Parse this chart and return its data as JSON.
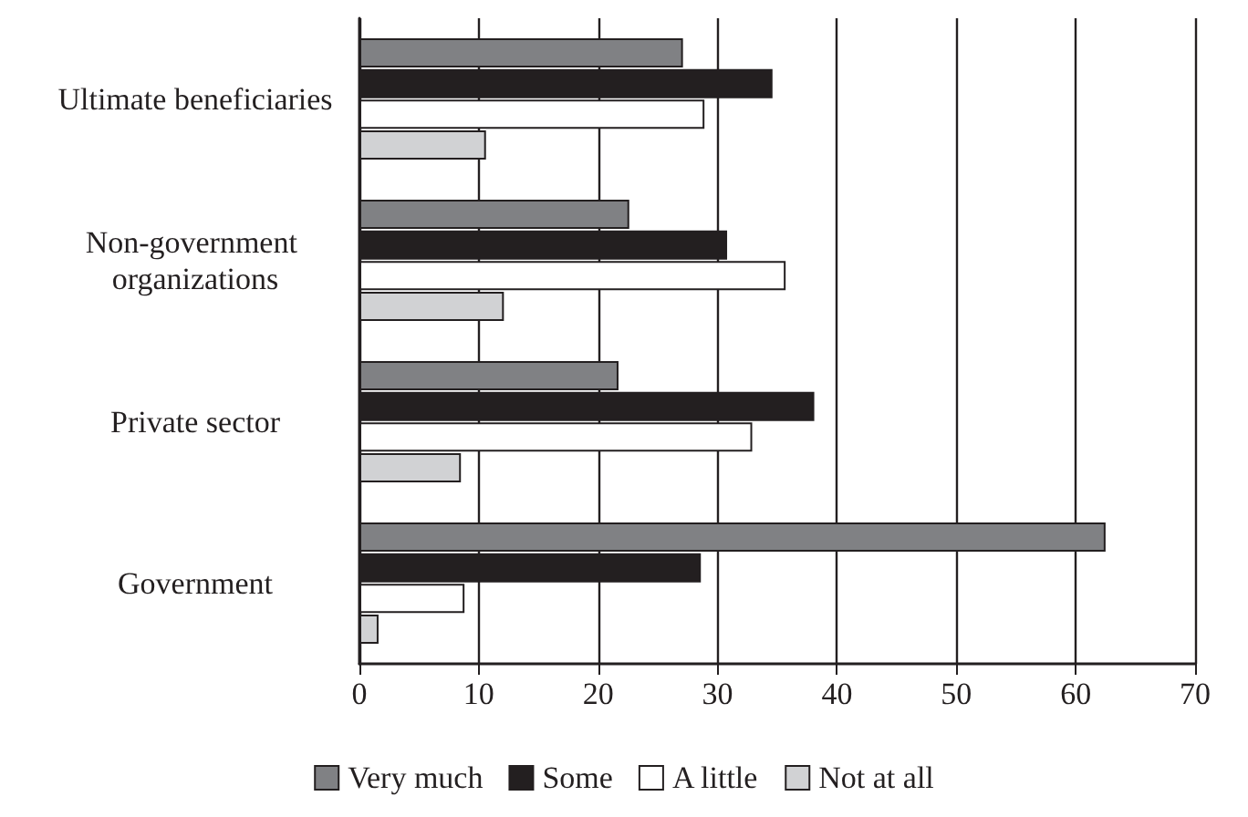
{
  "chart_data": {
    "type": "bar",
    "orientation": "horizontal",
    "categories": [
      "Ultimate beneficiaries",
      "Non-government organizations",
      "Private sector",
      "Government"
    ],
    "series": [
      {
        "name": "Very much",
        "color": "#808184",
        "values": [
          27.1,
          22.6,
          21.7,
          62.5
        ]
      },
      {
        "name": "Some",
        "color": "#231f20",
        "values": [
          34.6,
          30.8,
          38.1,
          28.6
        ]
      },
      {
        "name": "A little",
        "color": "#ffffff",
        "values": [
          28.9,
          35.7,
          32.9,
          8.8
        ]
      },
      {
        "name": "Not at all",
        "color": "#d1d2d4",
        "values": [
          10.6,
          12.1,
          8.5,
          1.6
        ]
      }
    ],
    "xlim": [
      0,
      70
    ],
    "xticks": [
      0,
      10,
      20,
      30,
      40,
      50,
      60,
      70
    ],
    "grid": "x",
    "legend": "bottom"
  }
}
